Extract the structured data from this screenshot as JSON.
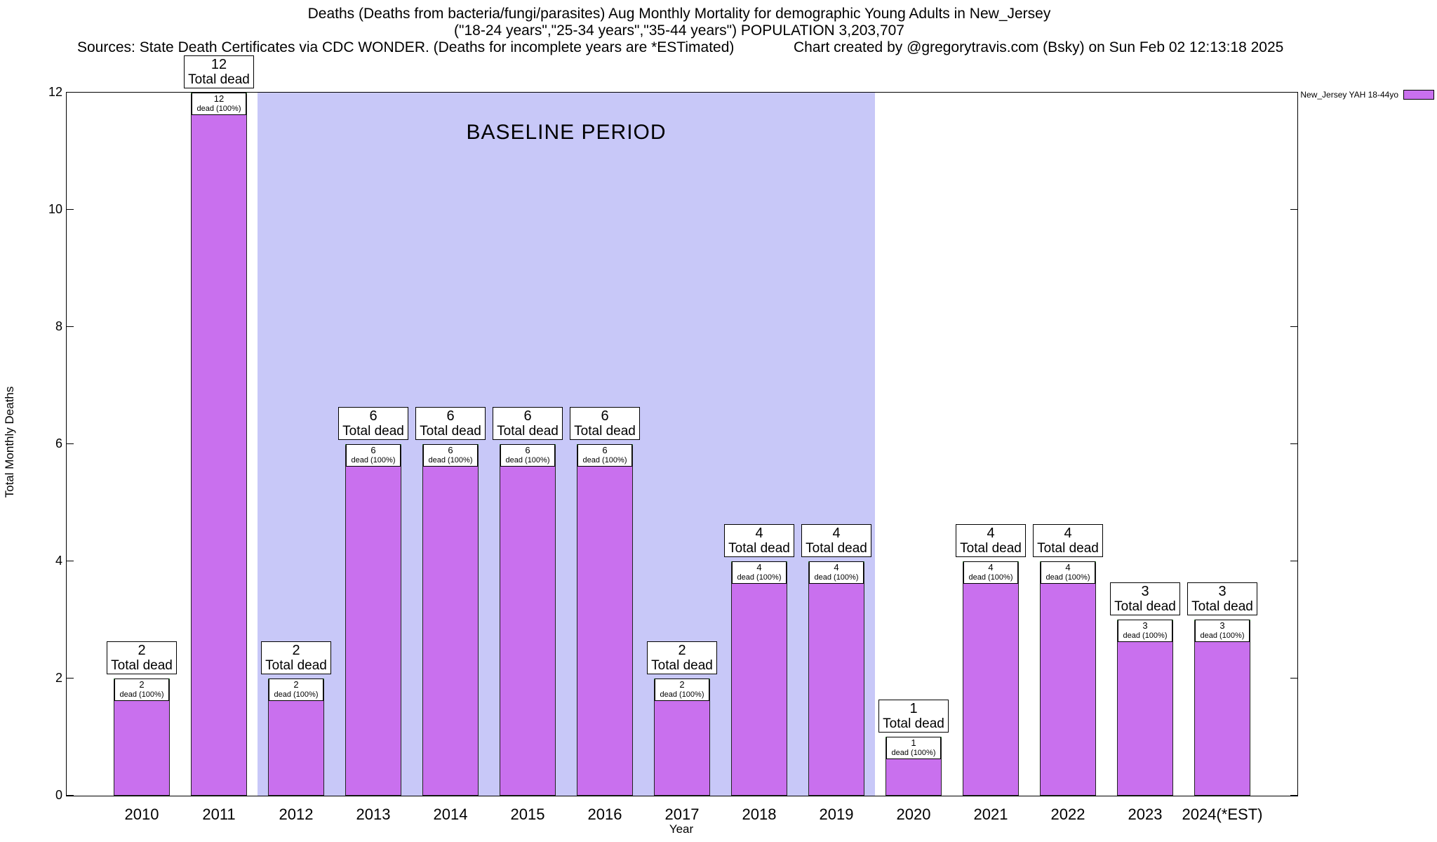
{
  "header": {
    "title_line1": "Deaths (Deaths from bacteria/fungi/parasites) Aug Monthly Mortality for demographic Young Adults in New_Jersey",
    "title_line2": "(\"18-24 years\",\"25-34 years\",\"35-44 years\") POPULATION 3,203,707",
    "sources": "Sources: State Death Certificates via CDC WONDER. (Deaths for incomplete years are *ESTimated)",
    "credit": "Chart created by @gregorytravis.com (Bsky) on Sun Feb 02 12:13:18 2025"
  },
  "legend": {
    "label": "New_Jersey YAH 18-44yo",
    "swatch_color": "#c970ee"
  },
  "baseline": {
    "label": "BASELINE PERIOD",
    "start_category": "2012",
    "end_category": "2019",
    "color": "#c8c8f8"
  },
  "chart_data": {
    "type": "bar",
    "title": "Deaths (Deaths from bacteria/fungi/parasites) Aug Monthly Mortality for demographic Young Adults in New_Jersey",
    "subtitle": "(\"18-24 years\",\"25-34 years\",\"35-44 years\") POPULATION 3,203,707",
    "categories": [
      "2010",
      "2011",
      "2012",
      "2013",
      "2014",
      "2015",
      "2016",
      "2017",
      "2018",
      "2019",
      "2020",
      "2021",
      "2022",
      "2023",
      "2024(*EST)"
    ],
    "values": [
      2,
      12,
      2,
      6,
      6,
      6,
      6,
      2,
      4,
      4,
      1,
      4,
      4,
      3,
      3
    ],
    "series_name": "New_Jersey YAH 18-44yo",
    "xlabel": "Year",
    "ylabel": "Total Monthly Deaths",
    "ylim": [
      0,
      12
    ],
    "y_ticks": [
      0,
      2,
      4,
      6,
      8,
      10,
      12
    ],
    "grid": false,
    "legend_position": "top-right",
    "bar_color": "#c970ee",
    "bar_top_color": "#2ca02c",
    "bar_label_suffix": "Total dead",
    "bar_sublabel_suffix": "dead (100%)"
  }
}
